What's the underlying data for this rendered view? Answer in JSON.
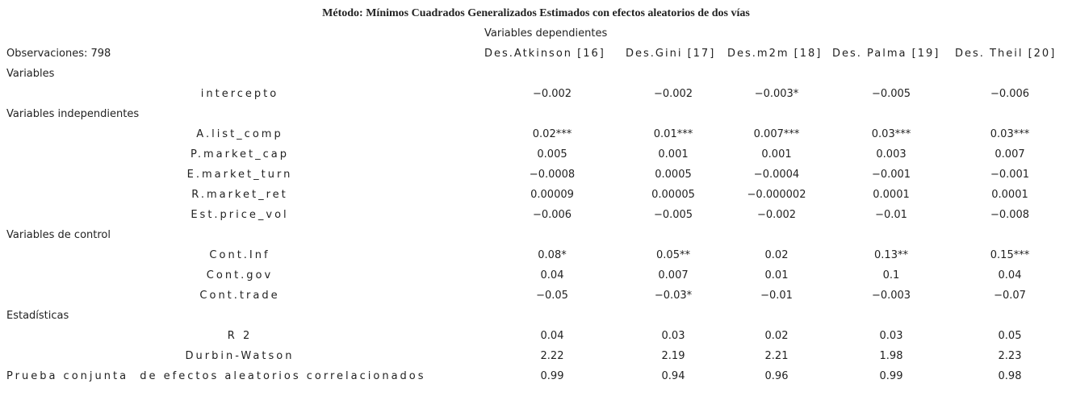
{
  "title": "Método: Mínimos Cuadrados Generalizados Estimados con efectos aleatorios de dos vías",
  "dependent_label": "Variables dependientes",
  "observations": "Observaciones: 798",
  "columns": [
    "Des.Atkinson [16]",
    "Des.Gini [17]",
    "Des.m2m [18]",
    "Des. Palma [19]",
    "Des. Theil [20]"
  ],
  "rows": [
    {
      "section": "Variables"
    },
    {
      "label": "intercepto",
      "values": [
        "−0.002",
        "−0.002",
        "−0.003*",
        "−0.005",
        "−0.006"
      ]
    },
    {
      "section": "Variables independientes"
    },
    {
      "label": "A.list_comp",
      "values": [
        "0.02***",
        "0.01***",
        "0.007***",
        "0.03***",
        "0.03***"
      ]
    },
    {
      "label": "P.market_cap",
      "values": [
        "0.005",
        "0.001",
        "0.001",
        "0.003",
        "0.007"
      ]
    },
    {
      "label": "E.market_turn",
      "values": [
        "−0.0008",
        "0.0005",
        "−0.0004",
        "−0.001",
        "−0.001"
      ]
    },
    {
      "label": "R.market_ret",
      "values": [
        "0.00009",
        "0.00005",
        "−0.000002",
        "0.0001",
        "0.0001"
      ]
    },
    {
      "label": "Est.price_vol",
      "values": [
        "−0.006",
        "−0.005",
        "−0.002",
        "−0.01",
        "−0.008"
      ]
    },
    {
      "section": "Variables de control"
    },
    {
      "label": "Cont.Inf",
      "values": [
        "0.08*",
        "0.05**",
        "0.02",
        "0.13**",
        "0.15***"
      ]
    },
    {
      "label": "Cont.gov",
      "values": [
        "0.04",
        "0.007",
        "0.01",
        "0.1",
        "0.04"
      ]
    },
    {
      "label": "Cont.trade",
      "values": [
        "−0.05",
        "−0.03*",
        "−0.01",
        "−0.003",
        "−0.07"
      ]
    },
    {
      "section": "Estadísticas"
    },
    {
      "label": "R 2",
      "values": [
        "0.04",
        "0.03",
        "0.02",
        "0.03",
        "0.05"
      ]
    },
    {
      "label": "Durbin-Watson",
      "values": [
        "2.22",
        "2.19",
        "2.21",
        "1.98",
        "2.23"
      ]
    },
    {
      "label": "Prueba conjunta  de efectos aleatorios correlacionados",
      "values": [
        "0.99",
        "0.94",
        "0.96",
        "0.99",
        "0.98"
      ]
    }
  ]
}
